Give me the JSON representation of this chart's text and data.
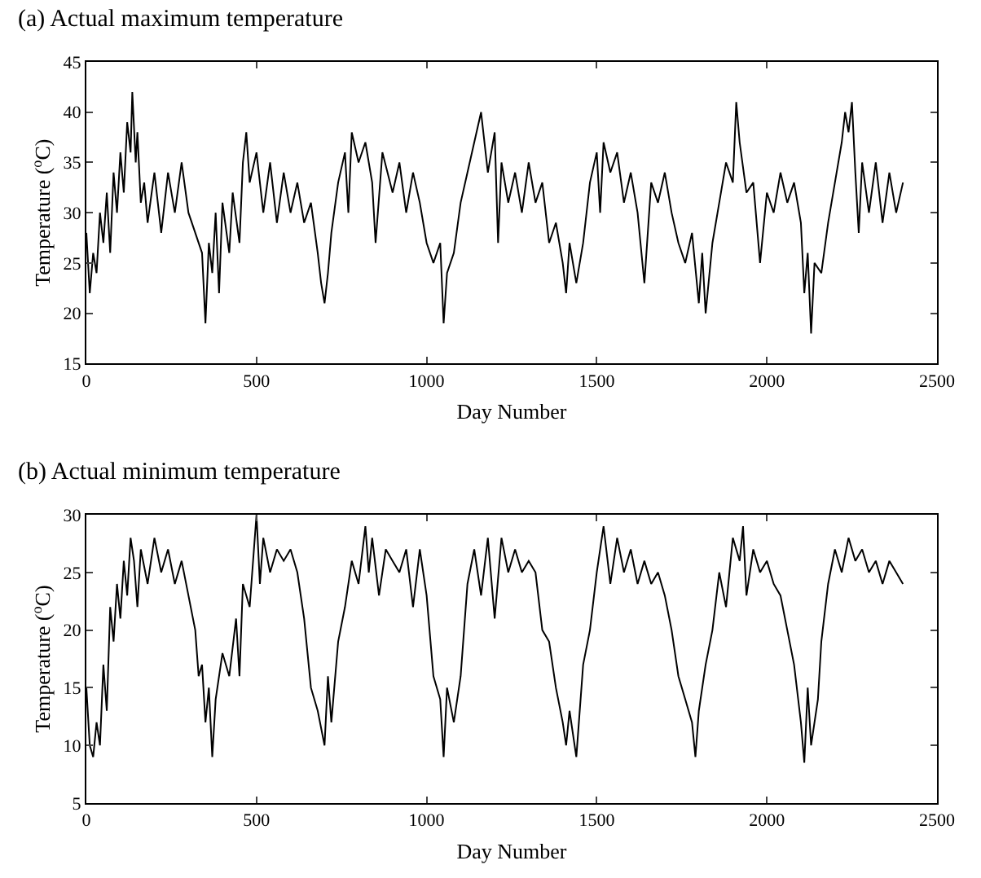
{
  "chart_data": [
    {
      "type": "line",
      "title": "(a) Actual maximum temperature",
      "xlabel": "Day Number",
      "ylabel": "Temperature ($^{o}$C)",
      "xlim": [
        0,
        2500
      ],
      "xticks": [
        0,
        500,
        1000,
        1500,
        2000,
        2500
      ],
      "ylim": [
        15,
        45
      ],
      "yticks": [
        15,
        20,
        25,
        30,
        35,
        40,
        45
      ],
      "series": [
        {
          "color": "#000000",
          "x": [
            0,
            10,
            20,
            30,
            40,
            50,
            60,
            70,
            80,
            90,
            100,
            110,
            120,
            130,
            135,
            145,
            150,
            160,
            170,
            180,
            200,
            220,
            240,
            260,
            280,
            300,
            320,
            340,
            350,
            360,
            370,
            380,
            390,
            400,
            420,
            430,
            450,
            460,
            470,
            480,
            500,
            520,
            540,
            560,
            580,
            600,
            620,
            640,
            660,
            680,
            690,
            700,
            710,
            720,
            740,
            760,
            770,
            780,
            800,
            820,
            840,
            850,
            870,
            900,
            920,
            940,
            960,
            980,
            1000,
            1020,
            1040,
            1050,
            1060,
            1080,
            1100,
            1120,
            1140,
            1160,
            1180,
            1200,
            1210,
            1220,
            1240,
            1260,
            1280,
            1300,
            1320,
            1340,
            1360,
            1380,
            1400,
            1410,
            1420,
            1440,
            1460,
            1480,
            1500,
            1510,
            1520,
            1540,
            1560,
            1580,
            1600,
            1620,
            1640,
            1660,
            1680,
            1700,
            1720,
            1740,
            1760,
            1780,
            1800,
            1810,
            1820,
            1840,
            1860,
            1880,
            1900,
            1910,
            1920,
            1940,
            1960,
            1980,
            2000,
            2020,
            2040,
            2060,
            2080,
            2100,
            2110,
            2120,
            2130,
            2140,
            2160,
            2180,
            2200,
            2220,
            2230,
            2240,
            2250,
            2260,
            2270,
            2280,
            2300,
            2320,
            2340,
            2360,
            2380,
            2400
          ],
          "values": [
            28,
            22,
            26,
            24,
            30,
            27,
            32,
            26,
            34,
            30,
            36,
            32,
            39,
            36,
            42,
            35,
            38,
            31,
            33,
            29,
            34,
            28,
            34,
            30,
            35,
            30,
            28,
            26,
            19,
            27,
            24,
            30,
            22,
            31,
            26,
            32,
            27,
            35,
            38,
            33,
            36,
            30,
            35,
            29,
            34,
            30,
            33,
            29,
            31,
            26,
            23,
            21,
            24,
            28,
            33,
            36,
            30,
            38,
            35,
            37,
            33,
            27,
            36,
            32,
            35,
            30,
            34,
            31,
            27,
            25,
            27,
            19,
            24,
            26,
            31,
            34,
            37,
            40,
            34,
            38,
            27,
            35,
            31,
            34,
            30,
            35,
            31,
            33,
            27,
            29,
            25,
            22,
            27,
            23,
            27,
            33,
            36,
            30,
            37,
            34,
            36,
            31,
            34,
            30,
            23,
            33,
            31,
            34,
            30,
            27,
            25,
            28,
            21,
            26,
            20,
            27,
            31,
            35,
            33,
            41,
            37,
            32,
            33,
            25,
            32,
            30,
            34,
            31,
            33,
            29,
            22,
            26,
            18,
            25,
            24,
            29,
            33,
            37,
            40,
            38,
            41,
            34,
            28,
            35,
            30,
            35,
            29,
            34,
            30,
            33
          ]
        }
      ]
    },
    {
      "type": "line",
      "title": "(b) Actual minimum temperature",
      "xlabel": "Day Number",
      "ylabel": "Temperature ($^{o}$C)",
      "xlim": [
        0,
        2500
      ],
      "xticks": [
        0,
        500,
        1000,
        1500,
        2000,
        2500
      ],
      "ylim": [
        5,
        30
      ],
      "yticks": [
        5,
        10,
        15,
        20,
        25,
        30
      ],
      "series": [
        {
          "color": "#000000",
          "x": [
            0,
            10,
            20,
            30,
            40,
            50,
            60,
            70,
            80,
            90,
            100,
            110,
            120,
            130,
            140,
            150,
            160,
            180,
            200,
            220,
            240,
            260,
            280,
            300,
            320,
            330,
            340,
            350,
            360,
            370,
            380,
            400,
            420,
            440,
            450,
            460,
            480,
            500,
            510,
            520,
            540,
            560,
            580,
            600,
            620,
            640,
            650,
            660,
            680,
            700,
            710,
            720,
            740,
            760,
            780,
            800,
            820,
            830,
            840,
            860,
            880,
            900,
            920,
            940,
            960,
            980,
            1000,
            1020,
            1040,
            1050,
            1060,
            1080,
            1100,
            1120,
            1140,
            1160,
            1180,
            1200,
            1220,
            1240,
            1260,
            1280,
            1300,
            1320,
            1340,
            1360,
            1380,
            1400,
            1410,
            1420,
            1440,
            1460,
            1480,
            1500,
            1520,
            1540,
            1560,
            1580,
            1600,
            1620,
            1640,
            1660,
            1680,
            1700,
            1720,
            1740,
            1760,
            1780,
            1790,
            1800,
            1820,
            1840,
            1860,
            1880,
            1900,
            1920,
            1930,
            1940,
            1960,
            1980,
            2000,
            2020,
            2040,
            2060,
            2080,
            2100,
            2110,
            2120,
            2130,
            2150,
            2160,
            2180,
            2200,
            2220,
            2240,
            2260,
            2280,
            2300,
            2320,
            2340,
            2360,
            2380,
            2400
          ],
          "values": [
            15,
            10,
            9,
            12,
            10,
            17,
            13,
            22,
            19,
            24,
            21,
            26,
            23,
            28,
            26,
            22,
            27,
            24,
            28,
            25,
            27,
            24,
            26,
            23,
            20,
            16,
            17,
            12,
            15,
            9,
            14,
            18,
            16,
            21,
            16,
            24,
            22,
            30,
            24,
            28,
            25,
            27,
            26,
            27,
            25,
            21,
            18,
            15,
            13,
            10,
            16,
            12,
            19,
            22,
            26,
            24,
            29,
            25,
            28,
            23,
            27,
            26,
            25,
            27,
            22,
            27,
            23,
            16,
            14,
            9,
            15,
            12,
            16,
            24,
            27,
            23,
            28,
            21,
            28,
            25,
            27,
            25,
            26,
            25,
            20,
            19,
            15,
            12,
            10,
            13,
            9,
            17,
            20,
            25,
            29,
            24,
            28,
            25,
            27,
            24,
            26,
            24,
            25,
            23,
            20,
            16,
            14,
            12,
            9,
            13,
            17,
            20,
            25,
            22,
            28,
            26,
            29,
            23,
            27,
            25,
            26,
            24,
            23,
            20,
            17,
            12,
            8.5,
            15,
            10,
            14,
            19,
            24,
            27,
            25,
            28,
            26,
            27,
            25,
            26,
            24,
            26,
            25,
            24
          ]
        }
      ]
    }
  ]
}
